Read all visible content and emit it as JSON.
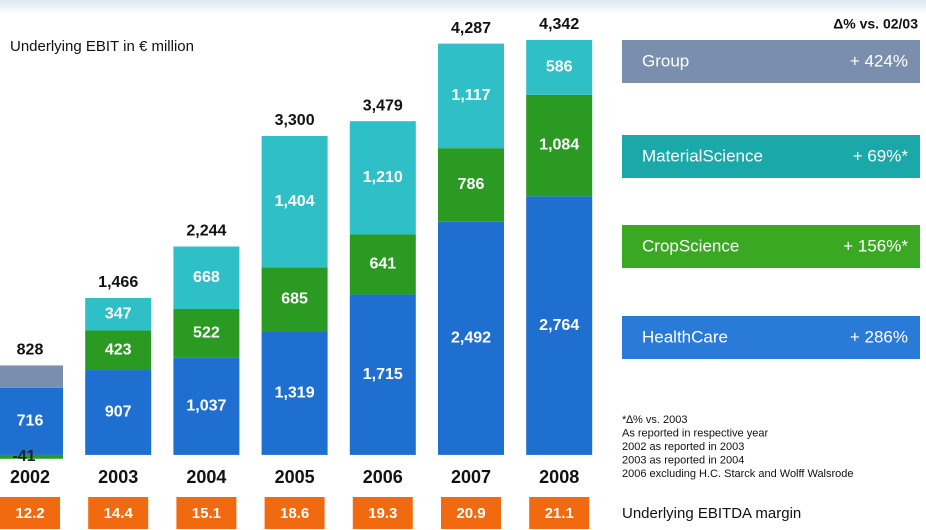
{
  "chart_data": {
    "type": "bar",
    "stacked": true,
    "title": "Underlying EBIT in € million",
    "categories": [
      "2002",
      "2003",
      "2004",
      "2005",
      "2006",
      "2007",
      "2008"
    ],
    "series": [
      {
        "name": "HealthCare",
        "color": "#1f6fd0",
        "values": [
          716,
          907,
          1037,
          1319,
          1715,
          2492,
          2764
        ],
        "value_labels": [
          "716",
          "907",
          "1,037",
          "1,319",
          "1,715",
          "2,492",
          "2,764"
        ]
      },
      {
        "name": "CropScience",
        "color": "#2b9a22",
        "values": [
          -41,
          423,
          522,
          685,
          641,
          786,
          1084
        ],
        "value_labels": [
          "-41",
          "423",
          "522",
          "685",
          "641",
          "786",
          "1,084"
        ]
      },
      {
        "name": "MaterialScience",
        "color": "#2ec0c6",
        "colors": [
          "#7a8fae",
          "#2ec0c6",
          "#2ec0c6",
          "#2ec0c6",
          "#2ec0c6",
          "#2ec0c6",
          "#2ec0c6"
        ],
        "values": [
          240,
          347,
          668,
          1404,
          1210,
          1117,
          586
        ],
        "value_labels": [
          null,
          "347",
          "668",
          "1,404",
          "1,210",
          "1,117",
          "586"
        ]
      }
    ],
    "totals": {
      "values": [
        828,
        1466,
        2244,
        3300,
        3479,
        4287,
        4342
      ],
      "value_labels": [
        "828",
        "1,466",
        "2,244",
        "3,300",
        "3,479",
        "4,287",
        "4,342"
      ]
    },
    "ylim": [
      -300,
      4861
    ],
    "margin_label": "Underlying EBITDA margin",
    "margin_color": "#f26a10",
    "margins": [
      12.2,
      14.4,
      15.1,
      18.6,
      19.3,
      20.9,
      21.1
    ],
    "change_header": "Δ% vs. 02/03",
    "changes": [
      {
        "name": "Group",
        "change": "+ 424%",
        "color": "#7a8fae"
      },
      {
        "name": "MaterialScience",
        "change": "+ 69%*",
        "color": "#1aa8a8"
      },
      {
        "name": "CropScience",
        "change": "+ 156%*",
        "color": "#3aa822"
      },
      {
        "name": "HealthCare",
        "change": "+ 286%",
        "color": "#2a7ad8"
      }
    ],
    "footnotes": [
      "*∆% vs. 2003",
      "As reported in respective year",
      "2002 as reported in 2003",
      "2003 as reported in 2004",
      "2006 excluding H.C. Starck and Wolff Walsrode"
    ]
  }
}
